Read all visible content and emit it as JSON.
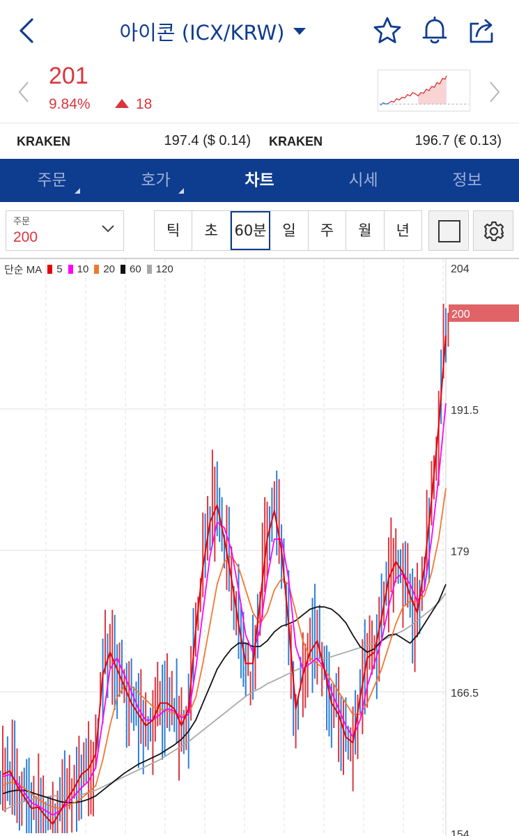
{
  "header": {
    "title": "아이콘 (ICX/KRW)"
  },
  "price": {
    "current": "201",
    "change_pct": "9.84%",
    "change_abs": "18"
  },
  "exchanges": [
    {
      "name": "KRAKEN",
      "value": "197.4 ($ 0.14)"
    },
    {
      "name": "KRAKEN",
      "value": "196.7 (€ 0.13)"
    }
  ],
  "tabs": [
    {
      "label": "주문"
    },
    {
      "label": "호가"
    },
    {
      "label": "차트"
    },
    {
      "label": "시세"
    },
    {
      "label": "정보"
    }
  ],
  "toolbar": {
    "order_label": "주문",
    "order_value": "200",
    "periods": [
      "틱",
      "초",
      "60분",
      "일",
      "주",
      "월",
      "년"
    ]
  },
  "chart": {
    "legend_title": "단순 MA",
    "current_price_tag": "200",
    "ma_series": [
      {
        "label": "5",
        "color": "#e8000b"
      },
      {
        "label": "10",
        "color": "#ff00ff"
      },
      {
        "label": "20",
        "color": "#f07830"
      },
      {
        "label": "60",
        "color": "#111111"
      },
      {
        "label": "120",
        "color": "#a8a8a8"
      }
    ]
  },
  "colors": {
    "brand": "#0e3c8f",
    "up": "#d9363e",
    "down": "#2b7fd6"
  },
  "chart_data": {
    "type": "line",
    "y_ticks": [
      "204",
      "191.5",
      "179",
      "166.5",
      "154"
    ],
    "ylim": [
      154,
      204
    ],
    "current": 200,
    "series": [
      {
        "name": "5",
        "values": [
          159.2,
          159.5,
          158.2,
          157.2,
          156.2,
          156.3,
          155.5,
          154.8,
          155.9,
          157.0,
          158.0,
          159.2,
          159.7,
          161.0,
          168.0,
          170.0,
          168.5,
          167.0,
          165.5,
          164.5,
          163.5,
          164.0,
          165.5,
          165.5,
          165.0,
          163.5,
          165.0,
          172.0,
          177.5,
          181.5,
          183.0,
          180.0,
          176.5,
          172.5,
          169.0,
          169.0,
          174.5,
          180.0,
          182.5,
          179.0,
          172.5,
          165.0,
          168.0,
          170.0,
          171.0,
          168.5,
          165.5,
          164.5,
          162.5,
          162.0,
          166.0,
          169.5,
          170.0,
          173.0,
          176.5,
          178.0,
          177.0,
          175.0,
          173.5,
          177.5,
          183.5,
          190.0,
          198.0
        ]
      },
      {
        "name": "10",
        "values": [
          159.0,
          159.2,
          158.5,
          157.6,
          156.7,
          156.4,
          156.0,
          155.6,
          156.0,
          156.6,
          157.3,
          158.0,
          158.6,
          159.8,
          164.0,
          168.5,
          169.5,
          168.0,
          166.5,
          165.0,
          164.0,
          164.0,
          164.5,
          165.0,
          164.8,
          164.2,
          164.5,
          168.5,
          173.5,
          178.5,
          181.5,
          181.0,
          179.0,
          175.5,
          171.5,
          170.0,
          172.0,
          176.5,
          180.0,
          180.0,
          176.5,
          170.5,
          168.5,
          169.0,
          169.5,
          168.5,
          166.5,
          165.0,
          163.5,
          162.5,
          164.0,
          167.0,
          169.0,
          171.0,
          174.0,
          176.5,
          177.0,
          176.0,
          174.5,
          175.5,
          180.0,
          185.5,
          192.0
        ]
      },
      {
        "name": "20",
        "values": [
          158.2,
          158.5,
          158.4,
          158.0,
          157.5,
          157.0,
          156.6,
          156.3,
          156.2,
          156.4,
          156.7,
          157.1,
          157.6,
          158.2,
          160.5,
          163.5,
          166.0,
          167.0,
          167.0,
          166.4,
          165.8,
          165.2,
          165.0,
          164.8,
          164.6,
          164.4,
          164.5,
          166.0,
          169.0,
          172.5,
          176.0,
          178.0,
          178.5,
          177.5,
          175.5,
          173.5,
          172.5,
          173.5,
          175.5,
          176.5,
          176.0,
          173.5,
          171.0,
          169.5,
          169.0,
          168.5,
          167.5,
          166.5,
          165.5,
          164.5,
          164.5,
          165.5,
          167.0,
          168.5,
          170.5,
          172.5,
          174.0,
          174.5,
          174.5,
          175.0,
          177.0,
          180.0,
          184.5
        ]
      },
      {
        "name": "60",
        "values": [
          157.5,
          157.7,
          157.8,
          157.8,
          157.6,
          157.4,
          157.2,
          157.0,
          156.8,
          156.7,
          156.7,
          156.8,
          157.0,
          157.3,
          157.8,
          158.3,
          158.8,
          159.3,
          159.7,
          160.1,
          160.4,
          160.7,
          161.0,
          161.4,
          161.8,
          162.3,
          163.0,
          164.0,
          165.5,
          167.0,
          168.5,
          169.5,
          170.3,
          170.8,
          170.8,
          170.5,
          170.5,
          171.0,
          171.8,
          172.3,
          172.5,
          172.8,
          173.3,
          173.8,
          174.0,
          174.0,
          173.8,
          173.3,
          172.6,
          171.5,
          170.5,
          170.0,
          170.3,
          171.0,
          171.5,
          171.6,
          171.2,
          170.8,
          171.5,
          172.5,
          173.5,
          174.5,
          176.0
        ]
      },
      {
        "name": "120",
        "values": [
          156.0,
          156.3,
          156.6,
          156.8,
          157.0,
          157.1,
          157.2,
          157.3,
          157.3,
          157.3,
          157.3,
          157.4,
          157.6,
          157.8,
          158.1,
          158.4,
          158.7,
          159.0,
          159.3,
          159.6,
          159.9,
          160.2,
          160.5,
          160.9,
          161.3,
          161.7,
          162.1,
          162.6,
          163.1,
          163.6,
          164.1,
          164.6,
          165.1,
          165.6,
          166.1,
          166.5,
          166.8,
          167.2,
          167.5,
          167.8,
          168.1,
          168.4,
          168.7,
          169.0,
          169.2,
          169.4,
          169.6,
          169.8,
          170.0,
          170.2,
          170.4,
          170.6,
          170.8,
          171.0,
          171.3,
          171.6,
          171.9,
          172.3,
          172.8,
          173.3,
          173.8,
          174.4,
          175.2
        ]
      }
    ]
  }
}
